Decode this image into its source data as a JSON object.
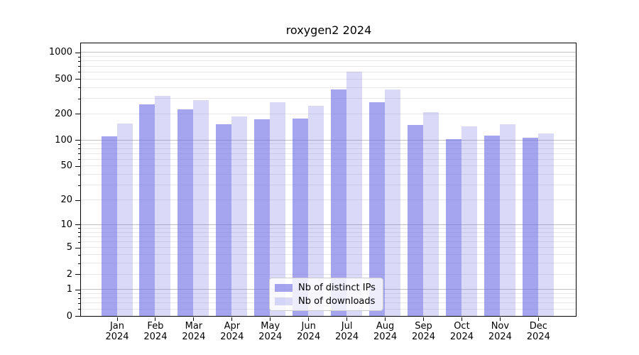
{
  "chart_data": {
    "type": "bar",
    "title": "roxygen2 2024",
    "scale": "log1p",
    "categories": [
      "Jan",
      "Feb",
      "Mar",
      "Apr",
      "May",
      "Jun",
      "Jul",
      "Aug",
      "Sep",
      "Oct",
      "Nov",
      "Dec"
    ],
    "x_tick_second_line": "2024",
    "series": [
      {
        "name": "Nb of distinct IPs",
        "color": "#6d6de5",
        "alpha": 0.62,
        "values": [
          110,
          255,
          226,
          152,
          172,
          175,
          380,
          272,
          149,
          103,
          113,
          107
        ]
      },
      {
        "name": "Nb of downloads",
        "color": "#6d6de5",
        "alpha": 0.25,
        "values": [
          155,
          318,
          287,
          185,
          270,
          247,
          608,
          380,
          207,
          143,
          151,
          119
        ]
      }
    ],
    "yticks": [
      0,
      1,
      2,
      5,
      10,
      20,
      50,
      100,
      200,
      500,
      1000
    ],
    "ylim": [
      0,
      1274
    ],
    "grid": true,
    "legend_position": "bottom-center",
    "colors": {
      "background": "#ffffff",
      "spine": "#000000",
      "grid_major": "#c0c0c0",
      "grid_minor": "#e8e8e8",
      "legend_border": "#cccccc"
    }
  }
}
